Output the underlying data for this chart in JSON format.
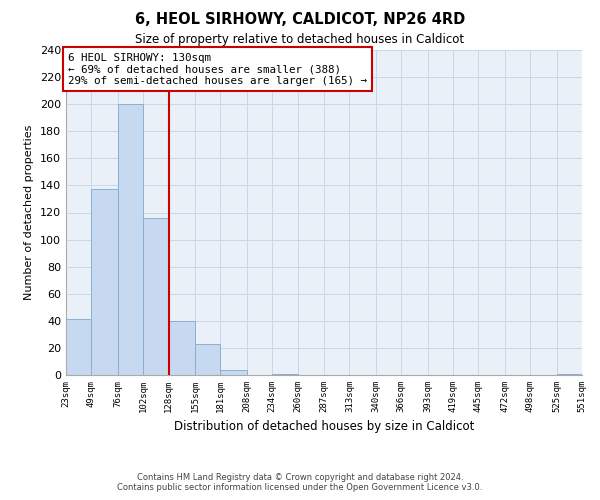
{
  "title": "6, HEOL SIRHOWY, CALDICOT, NP26 4RD",
  "subtitle": "Size of property relative to detached houses in Caldicot",
  "xlabel": "Distribution of detached houses by size in Caldicot",
  "ylabel": "Number of detached properties",
  "bar_edges": [
    23,
    49,
    76,
    102,
    128,
    155,
    181,
    208,
    234,
    260,
    287,
    313,
    340,
    366,
    393,
    419,
    445,
    472,
    498,
    525,
    551
  ],
  "bar_heights": [
    41,
    137,
    200,
    116,
    40,
    23,
    4,
    0,
    1,
    0,
    0,
    0,
    0,
    0,
    0,
    0,
    0,
    0,
    0,
    1
  ],
  "bar_color": "#c6d9f0",
  "bar_edge_color": "#8bafd4",
  "vline_x": 128,
  "vline_color": "#cc0000",
  "ylim": [
    0,
    240
  ],
  "yticks": [
    0,
    20,
    40,
    60,
    80,
    100,
    120,
    140,
    160,
    180,
    200,
    220,
    240
  ],
  "annotation_title": "6 HEOL SIRHOWY: 130sqm",
  "annotation_line1": "← 69% of detached houses are smaller (388)",
  "annotation_line2": "29% of semi-detached houses are larger (165) →",
  "annotation_box_color": "#ffffff",
  "annotation_box_edge": "#cc0000",
  "footer1": "Contains HM Land Registry data © Crown copyright and database right 2024.",
  "footer2": "Contains public sector information licensed under the Open Government Licence v3.0.",
  "tick_labels": [
    "23sqm",
    "49sqm",
    "76sqm",
    "102sqm",
    "128sqm",
    "155sqm",
    "181sqm",
    "208sqm",
    "234sqm",
    "260sqm",
    "287sqm",
    "313sqm",
    "340sqm",
    "366sqm",
    "393sqm",
    "419sqm",
    "445sqm",
    "472sqm",
    "498sqm",
    "525sqm",
    "551sqm"
  ],
  "grid_color": "#c8d8e8",
  "bg_color": "#ffffff",
  "plot_bg_color": "#eaf0f8"
}
